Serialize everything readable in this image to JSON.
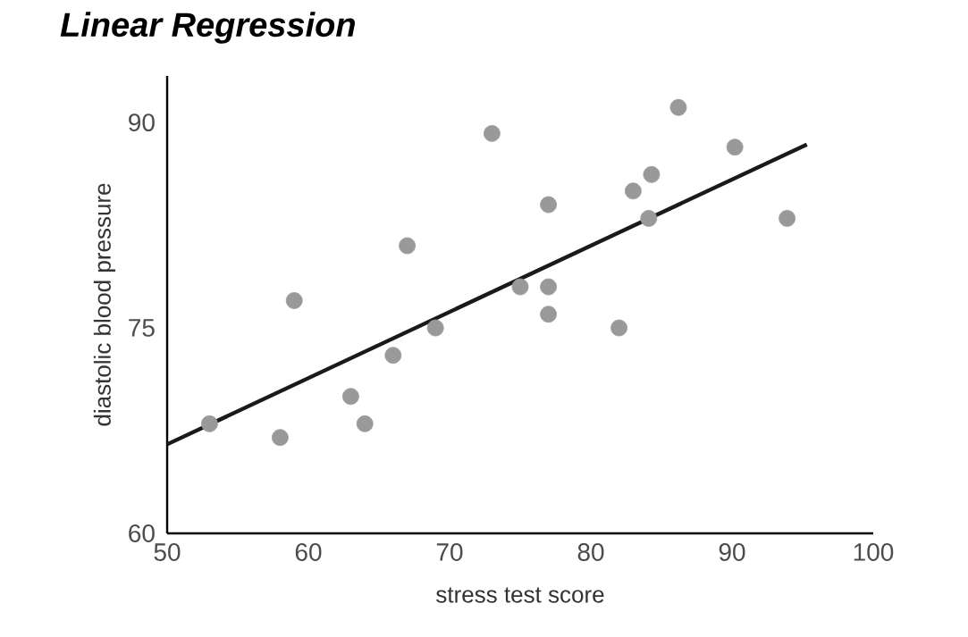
{
  "chart_data": {
    "type": "scatter",
    "title": "Linear Regression",
    "xlabel": "stress test score",
    "ylabel": "diastolic blood pressure",
    "xlim": [
      50,
      100
    ],
    "ylim": [
      60,
      93.4
    ],
    "xticks": [
      50,
      60,
      70,
      80,
      90,
      100
    ],
    "yticks": [
      60,
      75,
      90
    ],
    "grid": false,
    "series": [
      {
        "marker": "circle",
        "color": "#999999",
        "x": [
          53,
          58,
          59,
          63,
          64,
          66,
          67,
          69,
          73,
          75,
          77,
          77,
          77,
          82,
          83,
          84.3,
          84.1,
          86.2,
          90.2,
          93.9
        ],
        "values": [
          68,
          67,
          77,
          70,
          68,
          73,
          81,
          75,
          89.2,
          78,
          84,
          78,
          76,
          75,
          85,
          86.2,
          83,
          91.1,
          88.2,
          83
        ]
      },
      {
        "type": "line",
        "marker": "none",
        "color": "#1a1a1a",
        "x": [
          50,
          95.3
        ],
        "values": [
          66.5,
          88.4
        ]
      }
    ]
  }
}
